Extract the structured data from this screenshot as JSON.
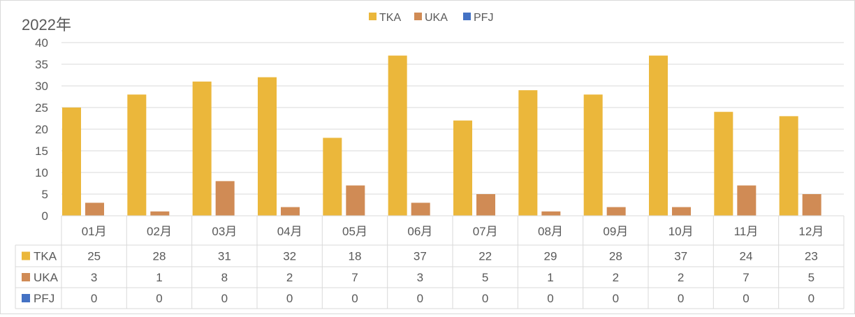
{
  "chart_data": {
    "type": "bar",
    "title": "2022年",
    "categories": [
      "01月",
      "02月",
      "03月",
      "04月",
      "05月",
      "06月",
      "07月",
      "08月",
      "09月",
      "10月",
      "11月",
      "12月"
    ],
    "series": [
      {
        "name": "TKA",
        "color": "#EBB73B",
        "values": [
          25,
          28,
          31,
          32,
          18,
          37,
          22,
          29,
          28,
          37,
          24,
          23
        ]
      },
      {
        "name": "UKA",
        "color": "#D08B55",
        "values": [
          3,
          1,
          8,
          2,
          7,
          3,
          5,
          1,
          2,
          2,
          7,
          5
        ]
      },
      {
        "name": "PFJ",
        "color": "#4472C4",
        "values": [
          0,
          0,
          0,
          0,
          0,
          0,
          0,
          0,
          0,
          0,
          0,
          0
        ]
      }
    ],
    "ylim": [
      0,
      40
    ],
    "yticks": [
      0,
      5,
      10,
      15,
      20,
      25,
      30,
      35,
      40
    ],
    "grid": true,
    "legend": "top-center",
    "data_table": true
  }
}
